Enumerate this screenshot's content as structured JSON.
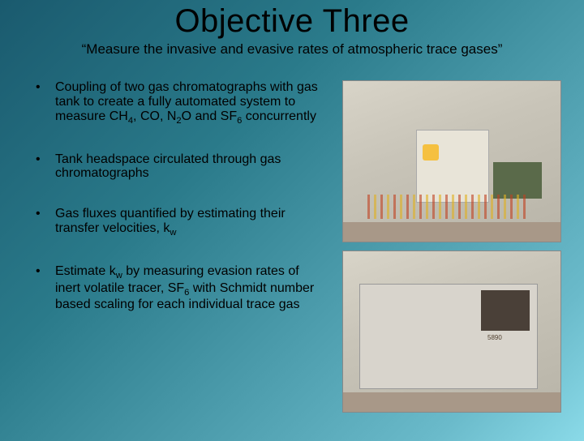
{
  "title": "Objective Three",
  "subtitle": "“Measure the invasive and evasive rates of atmospheric trace gases”",
  "bullets": [
    {
      "html": "Coupling of two gas chromatographs with gas tank to create a fully automated system to measure CH<sub>4</sub>, CO, N<sub>2</sub>O and SF<sub>6</sub> concurrently"
    },
    {
      "html": "Tank headspace circulated through gas chromatographs"
    },
    {
      "html": "Gas fluxes quantified by estimating their transfer velocities, k<sub>w</sub>"
    },
    {
      "html": "Estimate k<sub>w</sub> by measuring evasion rates of inert volatile tracer, SF<sub>6</sub> with Schmidt number based scaling for each individual trace gas"
    }
  ],
  "images": {
    "top": {
      "alt": "lab-equipment-top",
      "label": ""
    },
    "bottom": {
      "alt": "gas-chromatograph",
      "label": "5890"
    }
  },
  "colors": {
    "bg_gradient_start": "#1a5a6e",
    "bg_gradient_end": "#8adae8",
    "text": "#000000"
  }
}
